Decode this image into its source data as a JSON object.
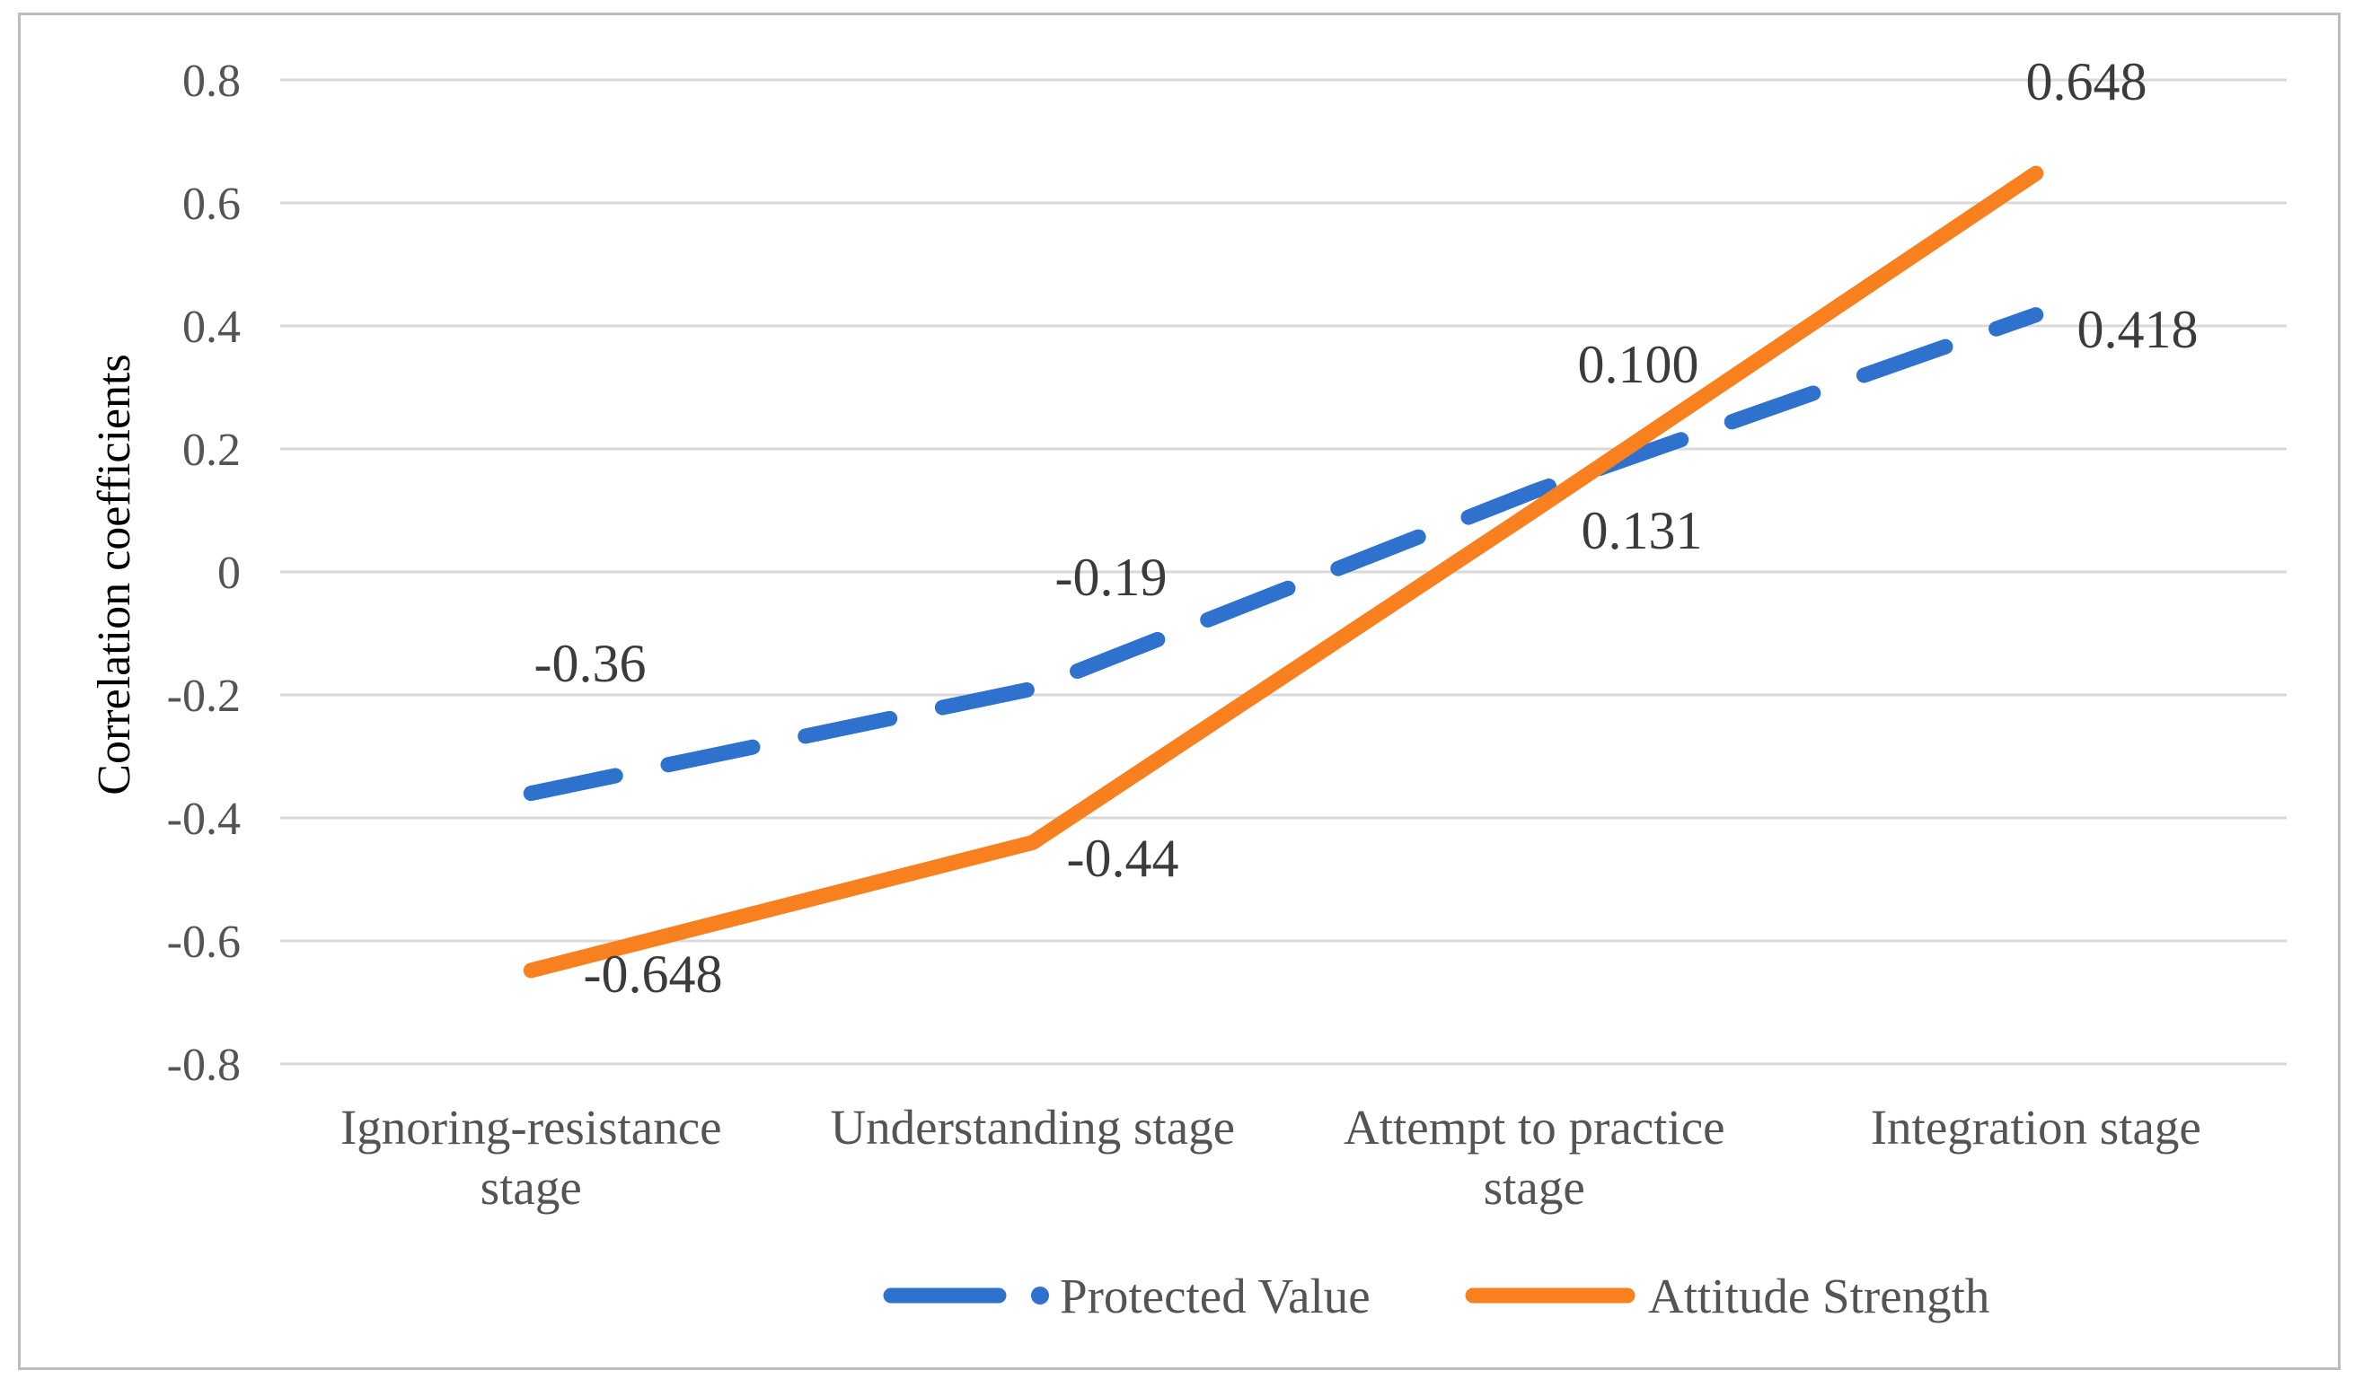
{
  "figure": {
    "background": "#ffffff",
    "border_color": "#bcbcbc"
  },
  "chart_data": {
    "type": "line",
    "title": "",
    "xlabel": "",
    "ylabel": "Correlation coefficients",
    "ylim": [
      -0.8,
      0.8
    ],
    "y_tick_step": 0.2,
    "y_ticks": [
      "0.8",
      "0.6",
      "0.4",
      "0.2",
      "0",
      "-0.2",
      "-0.4",
      "-0.6",
      "-0.8"
    ],
    "grid": true,
    "legend_position": "bottom",
    "categories": [
      "Ignoring-resistance stage",
      "Understanding stage",
      "Attempt to practice stage",
      "Integration stage"
    ],
    "category_tick_lines": [
      [
        "Ignoring-resistance",
        "stage"
      ],
      [
        "Understanding stage"
      ],
      [
        "Attempt to practice",
        "stage"
      ],
      [
        "Integration stage"
      ]
    ],
    "series": [
      {
        "name": "Protected Value",
        "style": "dashed",
        "color": "#2e72cd",
        "values": [
          -0.36,
          -0.19,
          0.131,
          0.418
        ],
        "labels": [
          "-0.36",
          "-0.19",
          "0.131",
          "0.418"
        ]
      },
      {
        "name": "Attitude Strength",
        "style": "solid",
        "color": "#f8801f",
        "values": [
          -0.648,
          -0.44,
          0.1,
          0.648
        ],
        "labels": [
          "-0.648",
          "-0.44",
          "0.100",
          "0.648"
        ]
      }
    ],
    "colors": {
      "gridline": "#d9d9d9",
      "axis_text": "#545454",
      "data_label_text": "#3b3b3b"
    }
  }
}
